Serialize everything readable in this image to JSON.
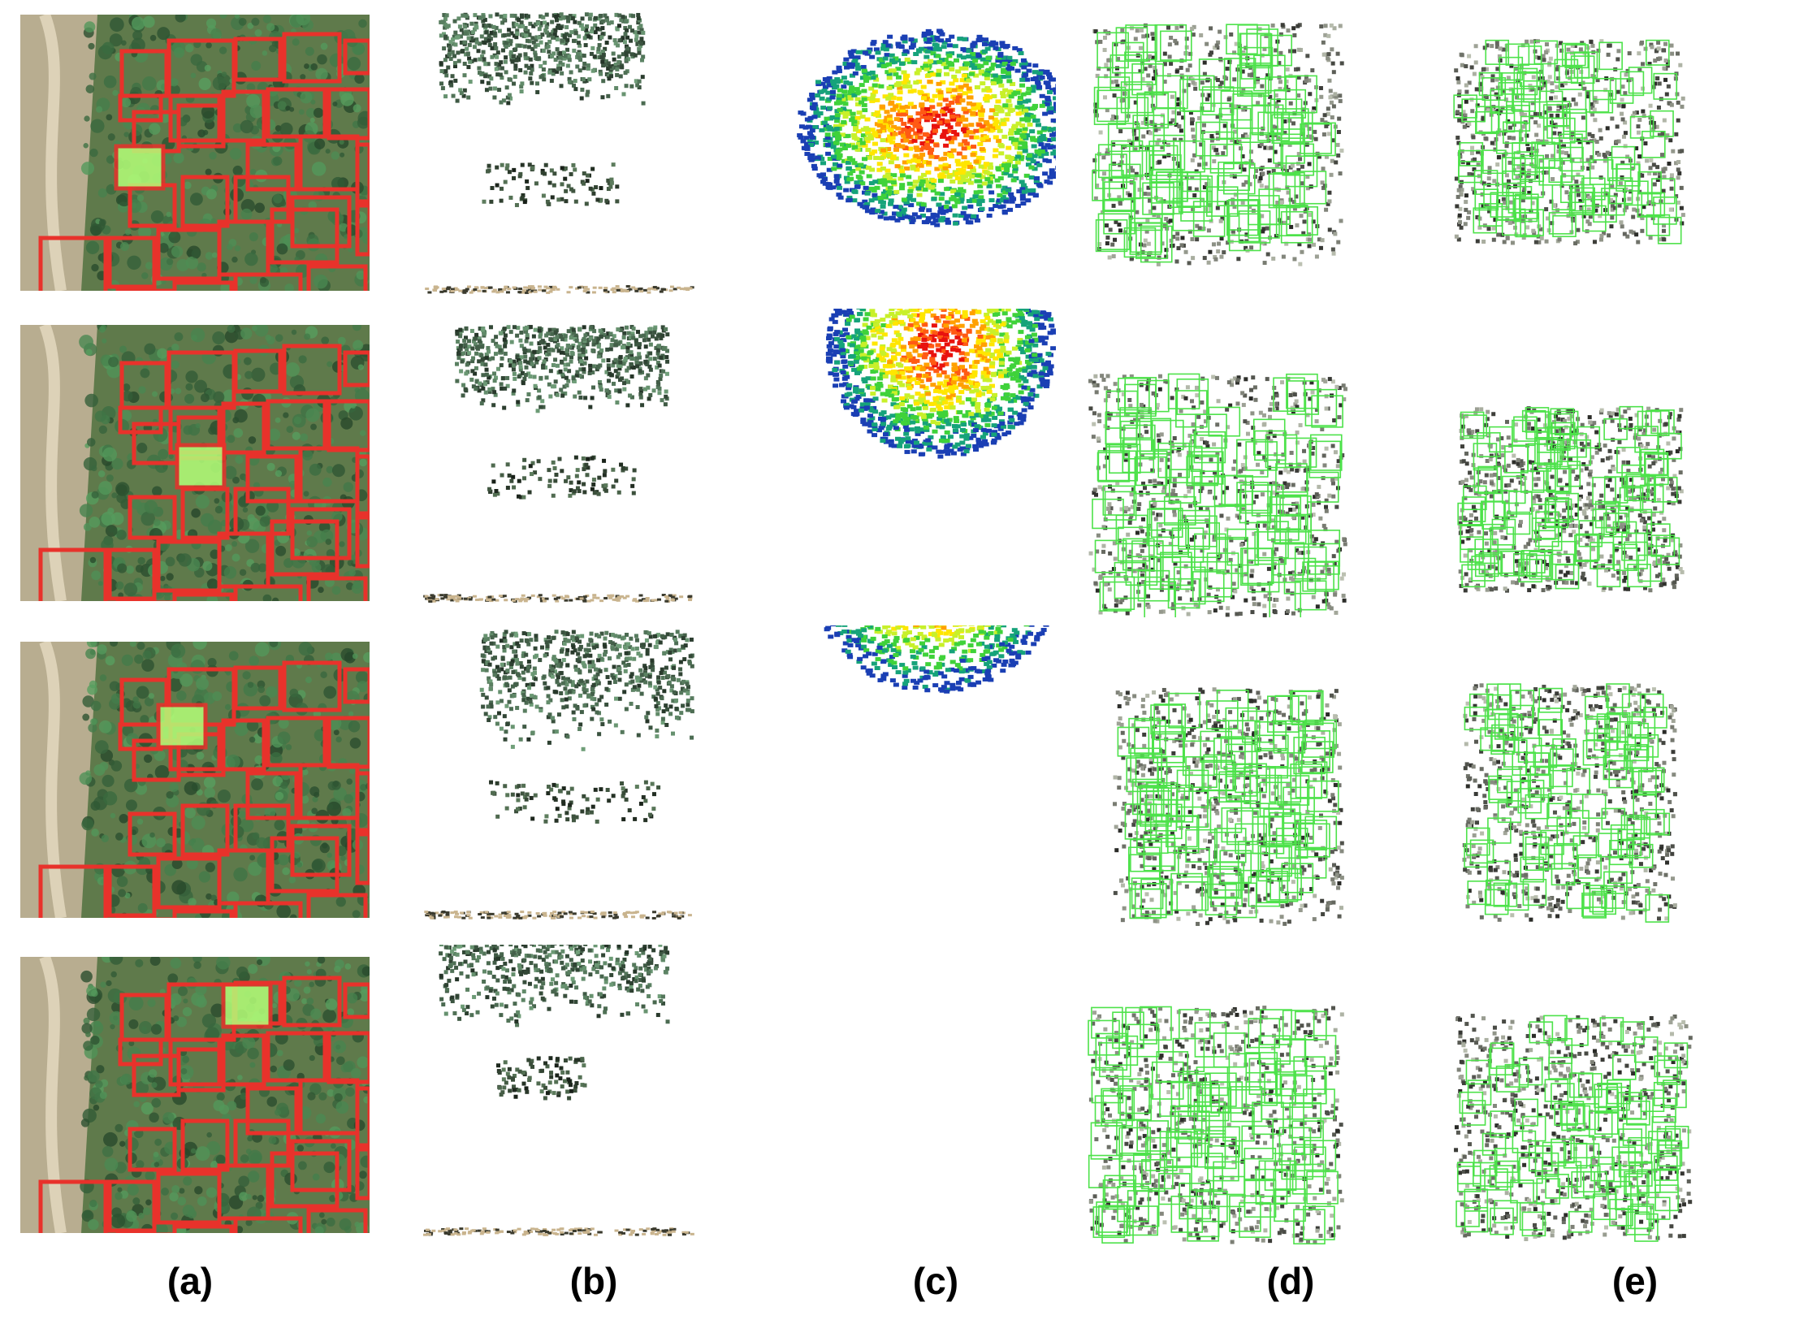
{
  "captions": [
    "(a)",
    "(b)",
    "(c)",
    "(d)",
    "(e)"
  ],
  "panels": [
    {
      "id": "a",
      "content": "aerial-image-with-tree-boxes"
    },
    {
      "id": "b",
      "content": "colored-tree-point-cloud"
    },
    {
      "id": "c",
      "content": "height-colored-top-view-point-cloud"
    },
    {
      "id": "d",
      "content": "point-cloud-with-dense-voxel-boxes"
    },
    {
      "id": "e",
      "content": "point-cloud-with-refined-voxel-boxes"
    }
  ],
  "rows": 4,
  "colors": {
    "detection_box": "#e8322b",
    "selected_tree": "#b4ff78",
    "voxel_box": "#4de24a",
    "height_scale": [
      "#1a3fb4",
      "#16a37a",
      "#3fd23a",
      "#c8f02a",
      "#ffe600",
      "#ffa000",
      "#ff5a14",
      "#e8120e"
    ]
  }
}
